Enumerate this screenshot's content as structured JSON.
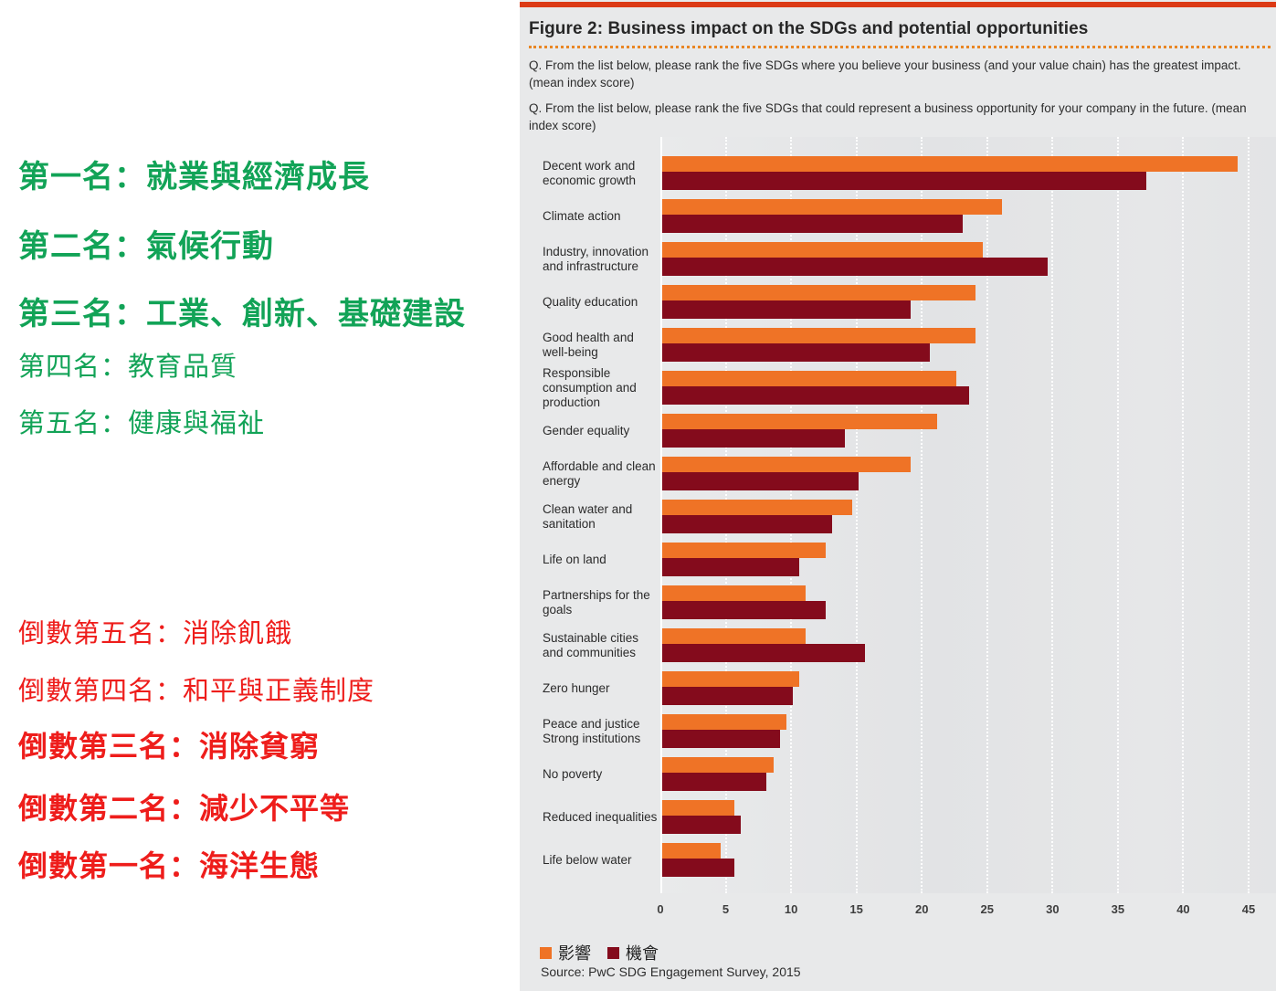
{
  "figure": {
    "title": "Figure 2: Business impact on the SDGs and potential opportunities",
    "question1": "Q. From the list below, please rank the five SDGs where you believe your business (and your value chain) has the greatest impact. (mean index score)",
    "question2": "Q. From the list below, please rank the five SDGs that could represent a business opportunity for your company in the future. (mean index score)",
    "source": "Source: PwC SDG Engagement Survey, 2015"
  },
  "annotations": {
    "top": [
      {
        "text": "第一名：就業與經濟成長",
        "emphasis": true
      },
      {
        "text": "第二名：氣候行動",
        "emphasis": true
      },
      {
        "text": "第三名：工業、創新、基礎建設",
        "emphasis": true
      },
      {
        "text": "第四名：教育品質",
        "emphasis": false
      },
      {
        "text": "第五名：健康與福祉",
        "emphasis": false
      }
    ],
    "bottom": [
      {
        "text": "倒數第五名：消除飢餓",
        "emphasis": false
      },
      {
        "text": "倒數第四名：和平與正義制度",
        "emphasis": false
      },
      {
        "text": "倒數第三名：消除貧窮",
        "emphasis": true
      },
      {
        "text": "倒數第二名：減少不平等",
        "emphasis": true
      },
      {
        "text": "倒數第一名：海洋生態",
        "emphasis": true
      }
    ],
    "colors": {
      "top_group": "#12A357",
      "bottom_group": "#EE1D1B"
    }
  },
  "chart_data": {
    "type": "bar",
    "orientation": "horizontal",
    "title": "Figure 2: Business impact on the SDGs and potential opportunities",
    "categories": [
      "Decent work and economic growth",
      "Climate action",
      "Industry, innovation and infrastructure",
      "Quality education",
      "Good health and well-being",
      "Responsible consumption and production",
      "Gender equality",
      "Affordable and clean energy",
      "Clean water and sanitation",
      "Life on land",
      "Partnerships for the goals",
      "Sustainable cities and communities",
      "Zero hunger",
      "Peace and justice Strong institutions",
      "No poverty",
      "Reduced inequalities",
      "Life below water"
    ],
    "series": [
      {
        "name": "影響",
        "color": "#EF7326",
        "values": [
          44,
          26,
          24.5,
          24,
          24,
          22.5,
          21,
          19,
          14.5,
          12.5,
          11,
          11,
          10.5,
          9.5,
          8.5,
          5.5,
          4.5
        ]
      },
      {
        "name": "機會",
        "color": "#840B1C",
        "values": [
          37,
          23,
          29.5,
          19,
          20.5,
          23.5,
          14,
          15,
          13,
          10.5,
          12.5,
          15.5,
          10,
          9,
          8,
          6,
          5.5
        ]
      }
    ],
    "xlabel": "",
    "ylabel": "",
    "xlim": [
      0,
      45
    ],
    "xticks": [
      0,
      5,
      10,
      15,
      20,
      25,
      30,
      35,
      40,
      45
    ],
    "grid": true,
    "gridline_style": "white dotted vertical",
    "legend_position": "bottom-left",
    "source": "Source: PwC SDG Engagement Survey, 2015"
  }
}
